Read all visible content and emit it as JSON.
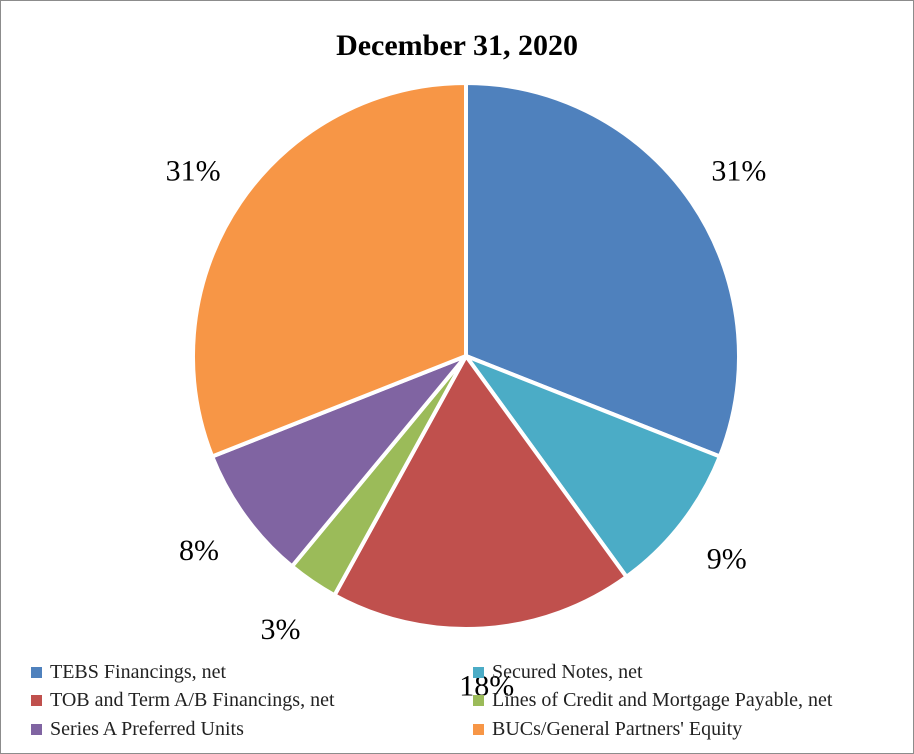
{
  "chart_data": {
    "type": "pie",
    "title": "December 31, 2020",
    "start_angle_deg": 0,
    "direction": "clockwise",
    "slices": [
      {
        "name": "TEBS Financings, net",
        "value": 31,
        "label": "31%",
        "color": "#4f81bd"
      },
      {
        "name": "Secured Notes, net",
        "value": 9,
        "label": "9%",
        "color": "#4bacc6"
      },
      {
        "name": "TOB and Term A/B Financings, net",
        "value": 18,
        "label": "18%",
        "color": "#c0504d"
      },
      {
        "name": "Lines of Credit and Mortgage Payable, net",
        "value": 3,
        "label": "3%",
        "color": "#9bbb59"
      },
      {
        "name": "Series A Preferred Units",
        "value": 8,
        "label": "8%",
        "color": "#8064a2"
      },
      {
        "name": "BUCs/General Partners' Equity",
        "value": 31,
        "label": "31%",
        "color": "#f79646"
      }
    ],
    "legend_position": "bottom"
  }
}
